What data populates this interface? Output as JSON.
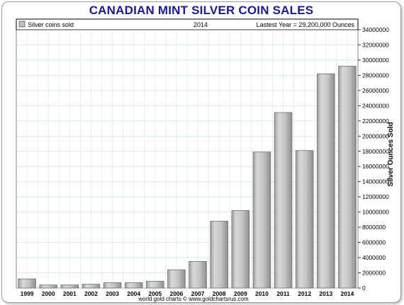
{
  "chart_data": {
    "type": "bar",
    "title": "CANADIAN MINT SILVER COIN SALES",
    "legend_label": "Silver coins sold",
    "header_year": "2014",
    "header_latest": "Lastest Year = 29,200,000 Ounces",
    "ylabel": "Silver Ounces Sold",
    "xlabel": "",
    "credit": "world gold charts © www.goldchartsrus.com",
    "categories": [
      "1999",
      "2000",
      "2001",
      "2002",
      "2003",
      "2004",
      "2005",
      "2006",
      "2007",
      "2008",
      "2009",
      "2010",
      "2011",
      "2012",
      "2013",
      "2014"
    ],
    "values": [
      1200000,
      400000,
      400000,
      500000,
      700000,
      700000,
      900000,
      2400000,
      3500000,
      8800000,
      10200000,
      17900000,
      23100000,
      18100000,
      28200000,
      29200000
    ],
    "ylim": [
      0,
      34000000
    ],
    "yticks": [
      0,
      2000000,
      4000000,
      6000000,
      8000000,
      10000000,
      12000000,
      14000000,
      16000000,
      18000000,
      20000000,
      22000000,
      24000000,
      26000000,
      28000000,
      30000000,
      32000000,
      34000000
    ],
    "ytick_labels": [
      "0",
      "2000000",
      "4000000",
      "6000000",
      "8000000",
      "10000000",
      "12000000",
      "14000000",
      "16000000",
      "18000000",
      "20000000",
      "22000000",
      "24000000",
      "26000000",
      "28000000",
      "30000000",
      "32000000",
      "34000000"
    ],
    "grid": true,
    "legend_position": "top-left",
    "colors": {
      "title": "#1a1a8c",
      "bar_fill": "#c8c8c8",
      "bar_edge": "#6e6e6e",
      "grid": "#cfe6ee",
      "axis": "#000000"
    }
  }
}
